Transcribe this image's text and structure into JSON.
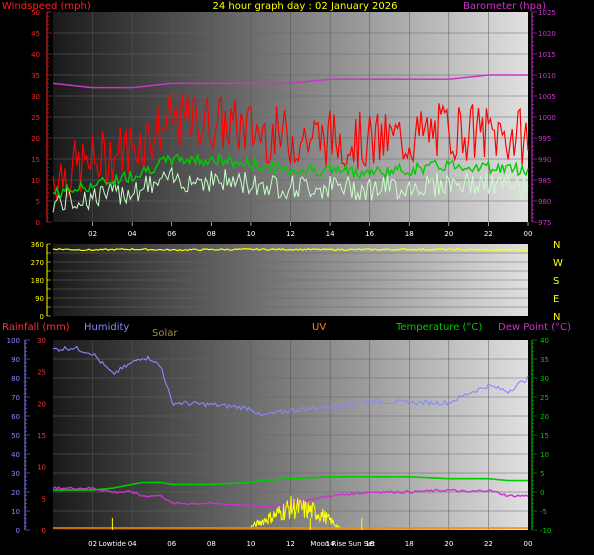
{
  "title": "24 hour graph day : 02 January 2026",
  "colors": {
    "wind_speed": "#ff0000",
    "wind_avg": "#00cc00",
    "wind_gust_low": "#c8ffc8",
    "barometer": "#cc33cc",
    "direction": "#ffff00",
    "humidity": "#8888ff",
    "temperature": "#00cc00",
    "dew_point": "#cc33cc",
    "solar": "#ffff00",
    "uv": "#ff8800",
    "rain": "#ff3333"
  },
  "chart_data": [
    {
      "type": "line",
      "title": "24 hour graph day : 02 January 2026",
      "ylabel_left": "Windspeed (mph)",
      "ylabel_right": "Barometer (hpa)",
      "x_ticks": [
        "02",
        "04",
        "06",
        "08",
        "10",
        "12",
        "14",
        "16",
        "18",
        "20",
        "22",
        "00"
      ],
      "y_ticks_left": [
        "0",
        "5",
        "10",
        "15",
        "20",
        "25",
        "30",
        "35",
        "40",
        "45",
        "50"
      ],
      "y_ticks_right": [
        "975",
        "980",
        "985",
        "990",
        "995",
        "1000",
        "1005",
        "1010",
        "1015",
        "1020",
        "1025"
      ],
      "ylim_left": [
        0,
        50
      ],
      "ylim_right": [
        975,
        1025
      ],
      "x_hours": [
        0,
        2,
        4,
        6,
        8,
        10,
        12,
        14,
        16,
        18,
        20,
        22,
        24
      ],
      "series": [
        {
          "name": "Windspeed (mph)",
          "values": [
            11,
            14,
            18,
            24,
            24,
            22,
            20,
            20,
            19,
            20,
            22,
            21,
            20
          ]
        },
        {
          "name": "Barometer (hpa)",
          "values": [
            1008,
            1007,
            1007,
            1008,
            1008,
            1008,
            1008,
            1009,
            1009,
            1009,
            1009,
            1010,
            1010
          ]
        }
      ]
    },
    {
      "type": "line",
      "ylabel_right_letters": [
        "N",
        "W",
        "S",
        "E",
        "N"
      ],
      "y_ticks_left": [
        "0",
        "90",
        "180",
        "270",
        "360"
      ],
      "ylim": [
        0,
        360
      ],
      "x_hours": [
        0,
        2,
        4,
        6,
        8,
        10,
        12,
        14,
        16,
        18,
        20,
        22,
        24
      ],
      "values": [
        335,
        330,
        334,
        330,
        332,
        333,
        333,
        332,
        332,
        333,
        333,
        330,
        332
      ]
    },
    {
      "type": "line",
      "labels": {
        "rainfall": "Rainfall (mm)",
        "humidity": "Humidity",
        "solar": "Solar",
        "uv": "UV",
        "temperature": "Temperature (°C)",
        "dew_point": "Dew Point (°C)"
      },
      "x_ticks": [
        "02",
        "04",
        "06",
        "08",
        "10",
        "12",
        "14",
        "16",
        "18",
        "20",
        "22",
        "00"
      ],
      "events": [
        "Lowtide",
        "Moon Rise",
        "Sun Set"
      ],
      "y_ticks_humidity": [
        "0",
        "10",
        "20",
        "30",
        "40",
        "50",
        "60",
        "70",
        "80",
        "90",
        "100"
      ],
      "y_ticks_rain": [
        "0",
        "5",
        "10",
        "15",
        "20",
        "25",
        "30"
      ],
      "y_ticks_temp": [
        "-10",
        "-5",
        "0",
        "5",
        "10",
        "15",
        "20",
        "25",
        "30",
        "35",
        "40"
      ],
      "x_hours": [
        0,
        1,
        2,
        3,
        4,
        4.5,
        5,
        5.5,
        6,
        8,
        10,
        10.5,
        12,
        14,
        16,
        18,
        20,
        21,
        22,
        23,
        24
      ],
      "humidity": [
        95,
        96,
        93,
        82,
        88,
        91,
        90,
        85,
        67,
        66,
        64,
        60,
        63,
        65,
        68,
        67,
        67,
        72,
        76,
        73,
        80
      ],
      "temperature": [
        0.5,
        0.5,
        0.5,
        1,
        2,
        2.5,
        2.5,
        2.5,
        2,
        2,
        2.5,
        3,
        3.5,
        4,
        4,
        4,
        3.5,
        3.5,
        3.5,
        3,
        3
      ],
      "dew_point": [
        1,
        1,
        1,
        0,
        0,
        -1,
        -1,
        -1,
        -3,
        -3,
        -3.5,
        -4,
        -3,
        -1,
        0,
        0,
        0.5,
        0,
        0.5,
        -1,
        -1
      ],
      "solar_hours": [
        10,
        10.5,
        11,
        11.5,
        12,
        12.5,
        13,
        13.5,
        14,
        14.5
      ],
      "solar_values": [
        2,
        5,
        8,
        11,
        14,
        13,
        12,
        10,
        6,
        1
      ]
    }
  ]
}
